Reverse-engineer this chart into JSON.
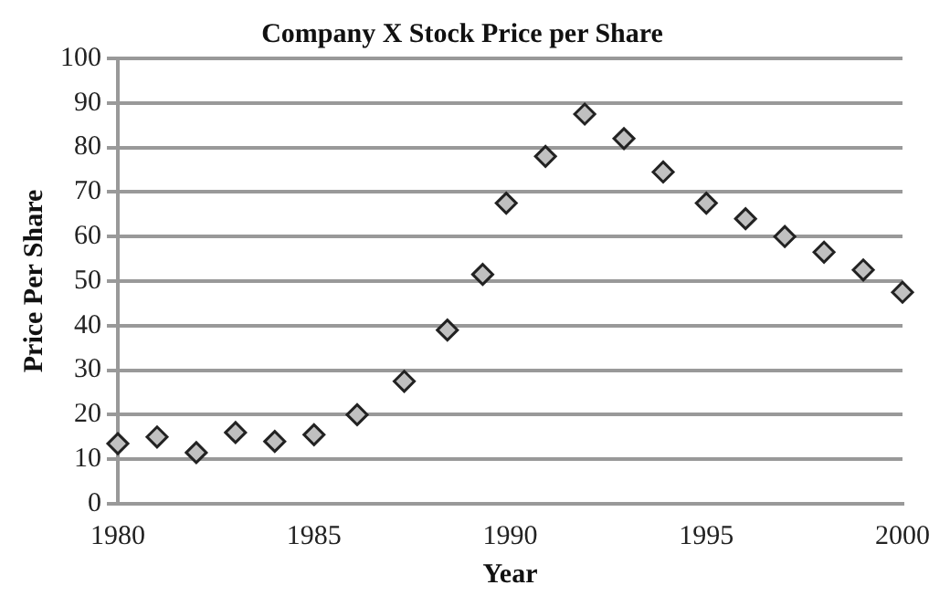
{
  "chart_data": {
    "type": "scatter",
    "title": "Company X Stock Price per Share",
    "xlabel": "Year",
    "ylabel": "Price Per Share",
    "x": [
      1980,
      1981,
      1982,
      1983,
      1984,
      1985,
      1986.1,
      1987.3,
      1988.4,
      1989.3,
      1989.9,
      1990.9,
      1991.9,
      1992.9,
      1993.9,
      1995,
      1996,
      1997,
      1998,
      1999,
      2000
    ],
    "values": [
      13.5,
      15,
      11.5,
      16,
      14,
      15.5,
      20,
      27.5,
      39,
      51.5,
      67.5,
      78,
      87.5,
      82,
      74.5,
      67.5,
      64,
      60,
      56.5,
      52.5,
      47.5
    ],
    "color": "#c0c0c0",
    "marker": "diamond",
    "xlim": [
      1980,
      2000
    ],
    "xticks": [
      1980,
      1985,
      1990,
      1995,
      2000
    ],
    "ylim": [
      0,
      100
    ],
    "yticks": [
      0,
      10,
      20,
      30,
      40,
      50,
      60,
      70,
      80,
      90,
      100
    ],
    "grid": "y",
    "legend": false
  }
}
